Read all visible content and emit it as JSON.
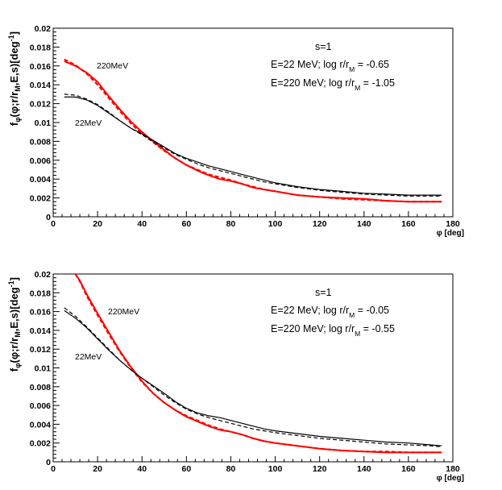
{
  "chart_data": [
    {
      "type": "line",
      "panel": "top",
      "xlabel": "φ [deg]",
      "ylabel_parts": [
        "f",
        "φ",
        "(φ;r/r",
        "M",
        ",E,s)[deg",
        "-1",
        "]"
      ],
      "xlim": [
        0,
        180
      ],
      "ylim": [
        0,
        0.02
      ],
      "xticks": [
        0,
        20,
        40,
        60,
        80,
        100,
        120,
        140,
        160,
        180
      ],
      "yticks": [
        0,
        0.002,
        0.004,
        0.006,
        0.008,
        0.01,
        0.012,
        0.014,
        0.016,
        0.018,
        0.02
      ],
      "ytick_labels": [
        "0",
        "0.002",
        "0.004",
        "0.006",
        "0.008",
        "0.01",
        "0.012",
        "0.014",
        "0.016",
        "0.018",
        "0.02"
      ],
      "annotations": {
        "s_label": "s=1",
        "line1_main": "E=22 MeV; log r/r",
        "line1_sub": "M",
        "line1_value": " = -0.65",
        "line2_main": "E=220 MeV; log r/r",
        "line2_sub": "M",
        "line2_value": " = -1.05"
      },
      "curve_labels": {
        "high": "220MeV",
        "low": "22MeV"
      },
      "series": [
        {
          "name": "220MeV data",
          "color": "#ff0000",
          "style": "solid",
          "x": [
            5,
            10,
            15,
            20,
            25,
            30,
            35,
            40,
            45,
            50,
            55,
            60,
            65,
            70,
            75,
            80,
            85,
            90,
            95,
            100,
            110,
            120,
            130,
            140,
            150,
            160,
            170,
            175
          ],
          "y": [
            0.0165,
            0.016,
            0.0153,
            0.0143,
            0.0128,
            0.0114,
            0.0101,
            0.009,
            0.008,
            0.0071,
            0.0062,
            0.0055,
            0.0049,
            0.0044,
            0.004,
            0.0038,
            0.0035,
            0.0031,
            0.0029,
            0.0027,
            0.0023,
            0.0021,
            0.002,
            0.0019,
            0.0017,
            0.0016,
            0.0016,
            0.0016
          ]
        },
        {
          "name": "220MeV fit",
          "color": "#ff0000",
          "style": "dashed",
          "x": [
            5,
            10,
            15,
            20,
            25,
            30,
            35,
            40,
            45,
            50,
            55,
            60,
            65,
            70,
            75,
            80,
            85,
            90,
            95,
            100,
            110,
            120,
            130,
            140,
            150,
            160,
            170,
            175
          ],
          "y": [
            0.0167,
            0.0161,
            0.0152,
            0.014,
            0.0126,
            0.0112,
            0.0099,
            0.0088,
            0.0079,
            0.007,
            0.0062,
            0.0055,
            0.005,
            0.0045,
            0.0042,
            0.0039,
            0.0035,
            0.0032,
            0.0029,
            0.0027,
            0.0023,
            0.0021,
            0.0019,
            0.0018,
            0.0017,
            0.0016,
            0.0016,
            0.0016
          ]
        },
        {
          "name": "22MeV data",
          "color": "#000000",
          "style": "solid",
          "x": [
            5,
            10,
            15,
            20,
            25,
            30,
            35,
            40,
            45,
            50,
            55,
            60,
            65,
            70,
            75,
            80,
            85,
            90,
            95,
            100,
            110,
            120,
            130,
            140,
            150,
            160,
            170,
            175
          ],
          "y": [
            0.0127,
            0.0127,
            0.0124,
            0.0118,
            0.011,
            0.0102,
            0.0094,
            0.0088,
            0.0081,
            0.0074,
            0.0067,
            0.0062,
            0.0058,
            0.0054,
            0.0051,
            0.0048,
            0.0045,
            0.0042,
            0.0039,
            0.0036,
            0.0032,
            0.0029,
            0.0027,
            0.0025,
            0.0024,
            0.0023,
            0.0023,
            0.0023
          ]
        },
        {
          "name": "22MeV fit",
          "color": "#000000",
          "style": "dashed",
          "x": [
            5,
            10,
            15,
            20,
            25,
            30,
            35,
            40,
            45,
            50,
            55,
            60,
            65,
            70,
            75,
            80,
            85,
            90,
            95,
            100,
            110,
            120,
            130,
            140,
            150,
            160,
            170,
            175
          ],
          "y": [
            0.013,
            0.0129,
            0.0125,
            0.0119,
            0.0111,
            0.0102,
            0.0094,
            0.0087,
            0.008,
            0.0073,
            0.0066,
            0.0061,
            0.0056,
            0.0052,
            0.0049,
            0.0046,
            0.0043,
            0.004,
            0.0037,
            0.0035,
            0.0031,
            0.0028,
            0.0026,
            0.0024,
            0.0023,
            0.0022,
            0.0022,
            0.0022
          ]
        }
      ]
    },
    {
      "type": "line",
      "panel": "bottom",
      "xlabel": "φ [deg]",
      "ylabel_parts": [
        "f",
        "φ",
        "(φ;r/r",
        "M",
        ",E,s)[deg",
        "-1",
        "]"
      ],
      "xlim": [
        0,
        180
      ],
      "ylim": [
        0,
        0.02
      ],
      "xticks": [
        0,
        20,
        40,
        60,
        80,
        100,
        120,
        140,
        160,
        180
      ],
      "yticks": [
        0,
        0.002,
        0.004,
        0.006,
        0.008,
        0.01,
        0.012,
        0.014,
        0.016,
        0.018,
        0.02
      ],
      "ytick_labels": [
        "0",
        "0.002",
        "0.004",
        "0.006",
        "0.008",
        "0.01",
        "0.012",
        "0.014",
        "0.016",
        "0.018",
        "0.02"
      ],
      "annotations": {
        "s_label": "s=1",
        "line1_main": "E=22 MeV; log r/r",
        "line1_sub": "M",
        "line1_value": " = -0.05",
        "line2_main": "E=220 MeV; log r/r",
        "line2_sub": "M",
        "line2_value": " = -0.55"
      },
      "curve_labels": {
        "high": "220MeV",
        "low": "22MeV"
      },
      "series": [
        {
          "name": "220MeV data",
          "color": "#ff0000",
          "style": "solid",
          "x": [
            10,
            12,
            15,
            20,
            25,
            30,
            35,
            40,
            45,
            50,
            55,
            60,
            65,
            70,
            75,
            80,
            85,
            90,
            95,
            100,
            110,
            120,
            130,
            140,
            150,
            160,
            170,
            175
          ],
          "y": [
            0.02,
            0.0193,
            0.0179,
            0.0158,
            0.0138,
            0.0118,
            0.0101,
            0.0086,
            0.0073,
            0.0063,
            0.0055,
            0.0048,
            0.0043,
            0.0038,
            0.0034,
            0.0032,
            0.0029,
            0.0025,
            0.0022,
            0.002,
            0.0017,
            0.0014,
            0.0012,
            0.0011,
            0.001,
            0.001,
            0.001,
            0.001
          ]
        },
        {
          "name": "220MeV fit",
          "color": "#ff0000",
          "style": "dashed",
          "x": [
            10,
            12,
            15,
            20,
            25,
            30,
            35,
            40,
            45,
            50,
            55,
            60,
            65,
            70,
            75,
            80,
            85,
            90,
            95,
            100,
            110,
            120,
            130,
            140,
            150,
            160,
            170,
            175
          ],
          "y": [
            0.02,
            0.0192,
            0.0177,
            0.0156,
            0.0136,
            0.0117,
            0.01,
            0.0085,
            0.0073,
            0.0063,
            0.0055,
            0.0049,
            0.0044,
            0.0039,
            0.0035,
            0.0032,
            0.0029,
            0.0025,
            0.0022,
            0.002,
            0.0017,
            0.0014,
            0.0012,
            0.0011,
            0.0011,
            0.001,
            0.001,
            0.001
          ]
        },
        {
          "name": "22MeV data",
          "color": "#000000",
          "style": "solid",
          "x": [
            5,
            10,
            15,
            20,
            25,
            30,
            35,
            40,
            45,
            50,
            55,
            60,
            65,
            70,
            75,
            80,
            85,
            90,
            95,
            100,
            110,
            120,
            130,
            140,
            150,
            160,
            170,
            175
          ],
          "y": [
            0.0161,
            0.0153,
            0.0143,
            0.0131,
            0.0119,
            0.0108,
            0.0098,
            0.0089,
            0.0081,
            0.0073,
            0.0064,
            0.0057,
            0.0052,
            0.0049,
            0.0047,
            0.0044,
            0.0041,
            0.0038,
            0.0035,
            0.0033,
            0.003,
            0.0027,
            0.0025,
            0.0023,
            0.0021,
            0.002,
            0.0018,
            0.0017
          ]
        },
        {
          "name": "22MeV fit",
          "color": "#000000",
          "style": "dashed",
          "x": [
            5,
            10,
            15,
            20,
            25,
            30,
            35,
            40,
            45,
            50,
            55,
            60,
            65,
            70,
            75,
            80,
            85,
            90,
            95,
            100,
            110,
            120,
            130,
            140,
            150,
            160,
            170,
            175
          ],
          "y": [
            0.0164,
            0.0155,
            0.0144,
            0.0132,
            0.012,
            0.0108,
            0.0098,
            0.0089,
            0.008,
            0.0071,
            0.0063,
            0.0056,
            0.0051,
            0.0047,
            0.0044,
            0.0041,
            0.0038,
            0.0035,
            0.0033,
            0.0031,
            0.0028,
            0.0025,
            0.0023,
            0.0021,
            0.0019,
            0.0018,
            0.0017,
            0.0016
          ]
        }
      ]
    }
  ]
}
